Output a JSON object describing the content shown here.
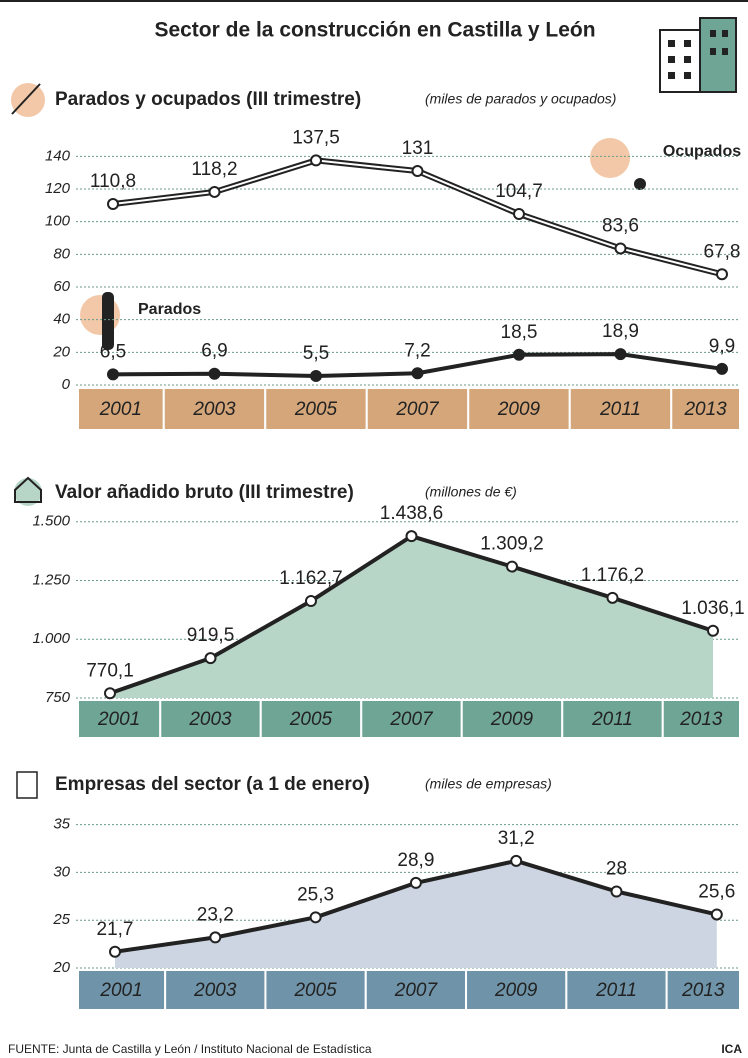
{
  "title": "Sector de la construcción en Castilla y León",
  "chart_data": [
    {
      "type": "line",
      "title": "Parados y ocupados (III trimestre)",
      "subtitle": "(miles de parados y ocupados)",
      "categories": [
        "2001",
        "2003",
        "2005",
        "2007",
        "2009",
        "2011",
        "2013"
      ],
      "series": [
        {
          "name": "Ocupados",
          "color": "#222222",
          "marker_fill": "#ffffff",
          "double": true,
          "values": [
            110.8,
            118.2,
            137.5,
            131,
            104.7,
            83.6,
            67.8
          ],
          "value_labels": [
            "110,8",
            "118,2",
            "137,5",
            "131",
            "104,7",
            "83,6",
            "67,8"
          ]
        },
        {
          "name": "Parados",
          "color": "#222222",
          "marker_fill": "#222222",
          "double": false,
          "values": [
            6.5,
            6.9,
            5.5,
            7.2,
            18.5,
            18.9,
            9.9
          ],
          "value_labels": [
            "6,5",
            "6,9",
            "5,5",
            "7,2",
            "18,5",
            "18,9",
            "9,9"
          ]
        }
      ],
      "ylim": [
        0,
        150
      ],
      "yticks": [
        0,
        20,
        40,
        60,
        80,
        100,
        120,
        140
      ],
      "grid": true,
      "band_color": "#d4a67a"
    },
    {
      "type": "area",
      "title": "Valor añadido bruto (III trimestre)",
      "subtitle": "(millones de €)",
      "categories": [
        "2001",
        "2003",
        "2005",
        "2007",
        "2009",
        "2011",
        "2013"
      ],
      "series": [
        {
          "color": "#222222",
          "marker_fill": "#ffffff",
          "double": false,
          "area_color": "#b8d6c8",
          "values": [
            770.1,
            919.5,
            1162.7,
            1438.6,
            1309.2,
            1176.2,
            1036.1
          ],
          "value_labels": [
            "770,1",
            "919,5",
            "1.162,7",
            "1.438,6",
            "1.309,2",
            "1.176,2",
            "1.036,1"
          ]
        }
      ],
      "ylim": [
        750,
        1550
      ],
      "yticks": [
        750,
        {
          "value": 1000,
          "label": "1.000"
        },
        {
          "value": 1250,
          "label": "1.250"
        },
        {
          "value": 1500,
          "label": "1.500"
        }
      ],
      "grid": true,
      "band_color": "#6fa595"
    },
    {
      "type": "area",
      "title": "Empresas del sector (a 1 de enero)",
      "subtitle": "(miles de empresas)",
      "categories": [
        "2001",
        "2003",
        "2005",
        "2007",
        "2009",
        "2011",
        "2013"
      ],
      "series": [
        {
          "color": "#222222",
          "marker_fill": "#ffffff",
          "double": false,
          "area_color": "#cdd5e3",
          "values": [
            21.7,
            23.2,
            25.3,
            28.9,
            31.2,
            28,
            25.6
          ],
          "value_labels": [
            "21,7",
            "23,2",
            "25,3",
            "28,9",
            "31,2",
            "28",
            "25,6"
          ]
        }
      ],
      "ylim": [
        20,
        36
      ],
      "yticks": [
        20,
        25,
        30,
        35
      ],
      "grid": true,
      "band_color": "#6f93a8"
    }
  ],
  "source": "FUENTE: Junta de Castilla y León / Instituto Nacional de Estadística",
  "credit": "ICA"
}
